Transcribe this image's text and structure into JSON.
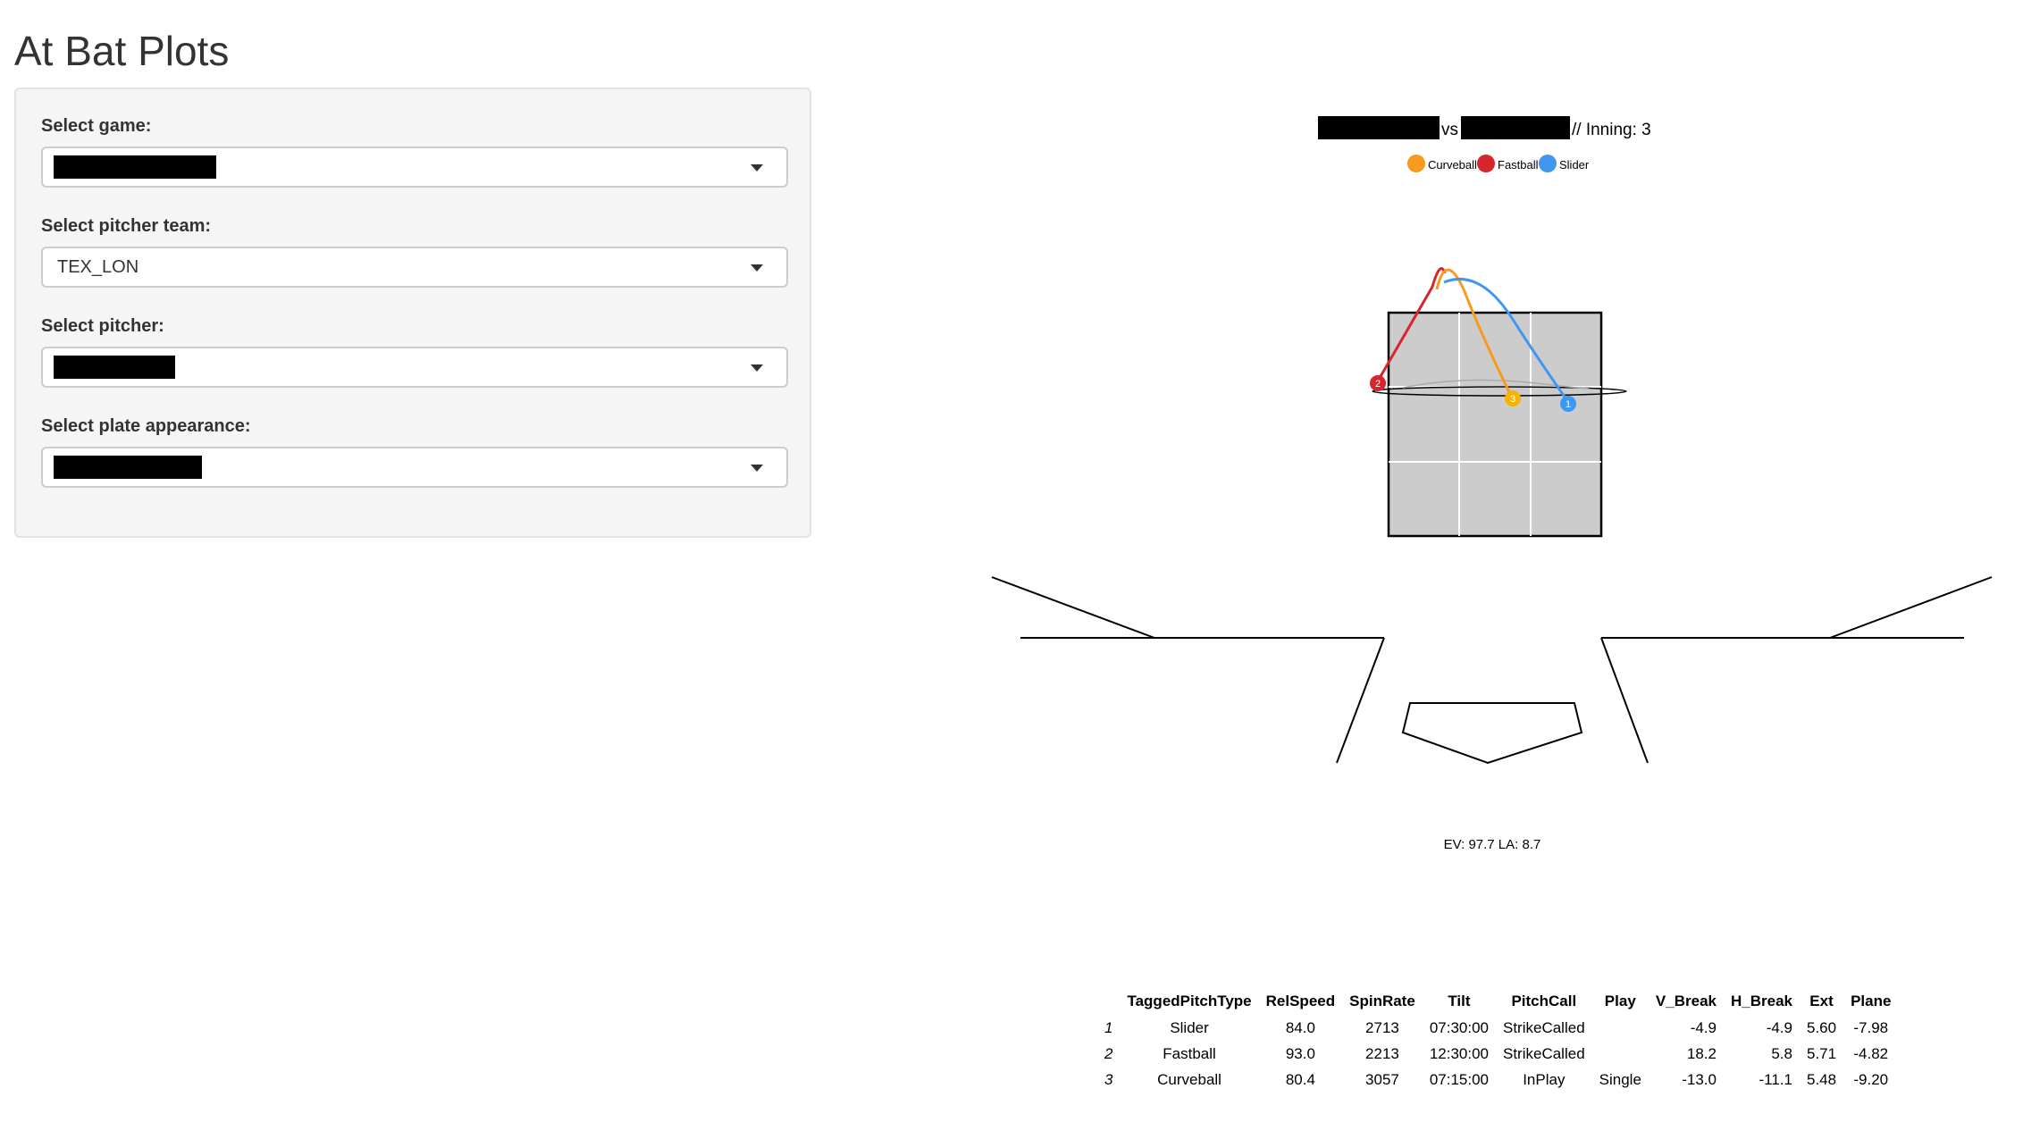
{
  "page": {
    "title": "At Bat Plots"
  },
  "sidebar": {
    "game": {
      "label": "Select game:",
      "value_redacted": true,
      "icon": "chevron-down-icon"
    },
    "pitcher_team": {
      "label": "Select pitcher team:",
      "value": "TEX_LON",
      "icon": "chevron-down-icon"
    },
    "pitcher": {
      "label": "Select pitcher:",
      "value_redacted": true,
      "icon": "chevron-down-icon"
    },
    "plate_appearance": {
      "label": "Select plate appearance:",
      "value_redacted": true,
      "icon": "chevron-down-icon"
    }
  },
  "plot": {
    "title_vs": "vs",
    "title_inning": "// Inning: 3",
    "legend": [
      {
        "name": "Curveball",
        "color": "#F79A1E"
      },
      {
        "name": "Fastball",
        "color": "#D7262B"
      },
      {
        "name": "Slider",
        "color": "#3F97F0"
      }
    ],
    "pitch_markers": [
      {
        "number": "1",
        "type": "Slider",
        "color": "#3F97F0"
      },
      {
        "number": "2",
        "type": "Fastball",
        "color": "#D7262B"
      },
      {
        "number": "3",
        "type": "Curveball",
        "color": "#F5B400"
      }
    ],
    "result_text": "EV: 97.7 LA: 8.7",
    "colors": {
      "zone_fill": "#cccccc",
      "zone_border": "#000000",
      "grid": "#ffffff"
    }
  },
  "table": {
    "headers": [
      "",
      "TaggedPitchType",
      "RelSpeed",
      "SpinRate",
      "Tilt",
      "PitchCall",
      "Play",
      "V_Break",
      "H_Break",
      "Ext",
      "Plane"
    ],
    "rows": [
      [
        "1",
        "Slider",
        "84.0",
        "2713",
        "07:30:00",
        "StrikeCalled",
        "",
        "-4.9",
        "-4.9",
        "5.60",
        "-7.98"
      ],
      [
        "2",
        "Fastball",
        "93.0",
        "2213",
        "12:30:00",
        "StrikeCalled",
        "",
        "18.2",
        "5.8",
        "5.71",
        "-4.82"
      ],
      [
        "3",
        "Curveball",
        "80.4",
        "3057",
        "07:15:00",
        "InPlay",
        "Single",
        "-13.0",
        "-11.1",
        "5.48",
        "-9.20"
      ]
    ]
  }
}
